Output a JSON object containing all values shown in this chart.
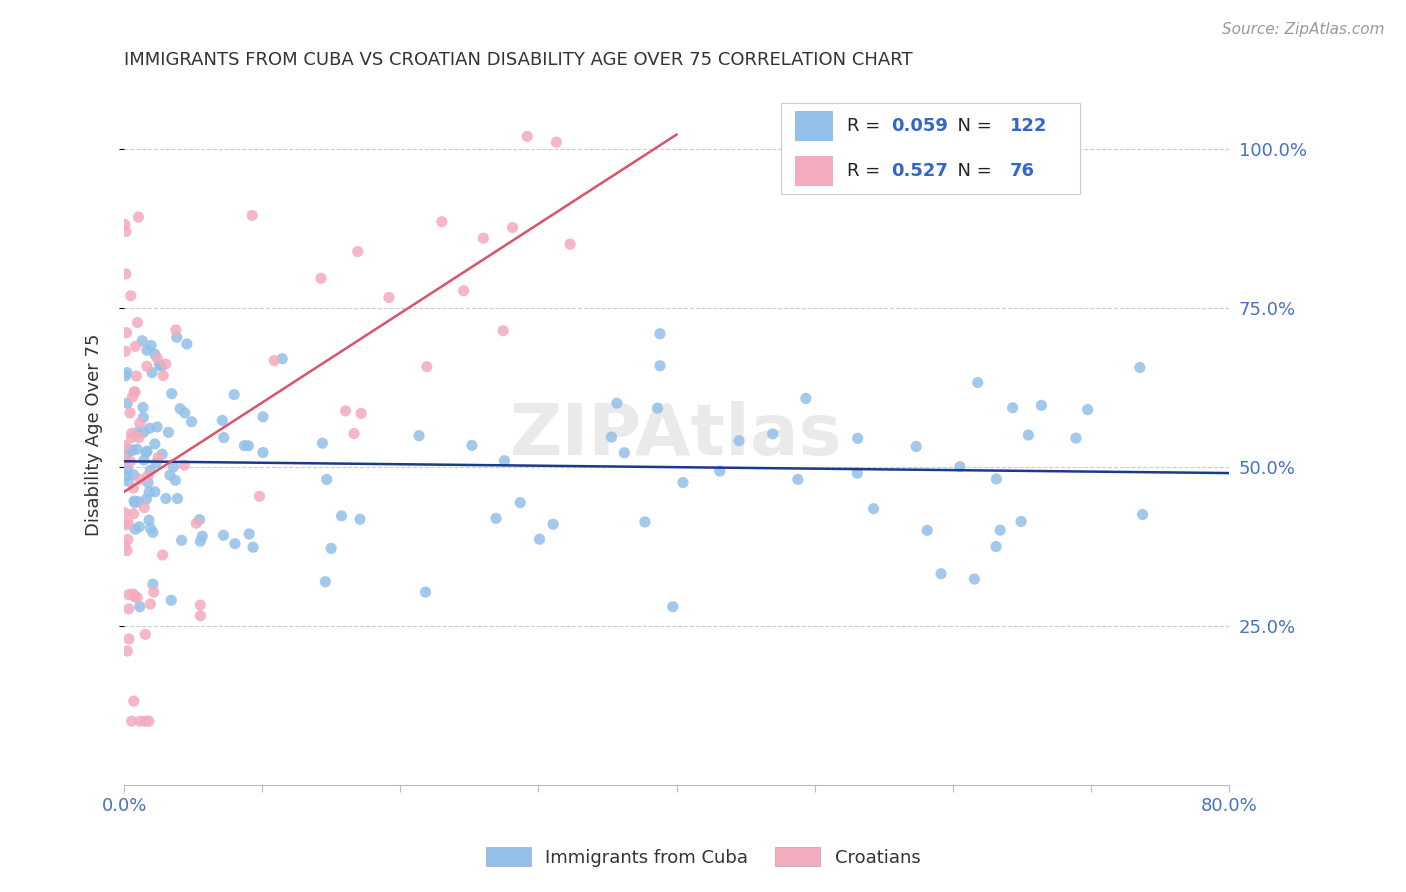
{
  "title": "IMMIGRANTS FROM CUBA VS CROATIAN DISABILITY AGE OVER 75 CORRELATION CHART",
  "source": "Source: ZipAtlas.com",
  "ylabel": "Disability Age Over 75",
  "xlim": [
    0.0,
    0.8
  ],
  "ylim": [
    0.0,
    1.1
  ],
  "ytick_labels": [
    "25.0%",
    "50.0%",
    "75.0%",
    "100.0%"
  ],
  "ytick_positions": [
    0.25,
    0.5,
    0.75,
    1.0
  ],
  "cuba_color": "#92C0E8",
  "croatia_color": "#F4ABBE",
  "cuba_line_color": "#1A3A8C",
  "croatia_line_color": "#D9536A",
  "legend_R_color": "#3366CC",
  "legend_N_color": "#3366CC",
  "cuba_R": 0.059,
  "cuba_N": 122,
  "croatia_R": 0.527,
  "croatia_N": 76,
  "legend_label_cuba": "Immigrants from Cuba",
  "legend_label_croatia": "Croatians",
  "watermark": "ZIPAtlas",
  "background_color": "#FFFFFF",
  "grid_color": "#CCCCCC",
  "axis_label_color": "#4472C4",
  "title_fontsize": 13,
  "tick_fontsize": 13,
  "source_fontsize": 11
}
